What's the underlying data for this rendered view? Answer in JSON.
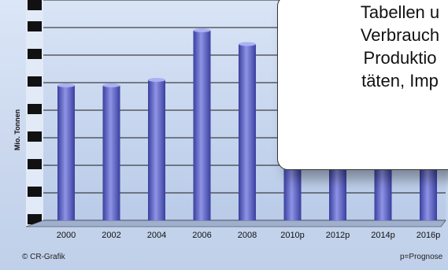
{
  "chart_data": {
    "type": "bar",
    "title": "",
    "xlabel": "",
    "ylabel": "Mio. Tonnen",
    "categories": [
      "2000",
      "2002",
      "2004",
      "2006",
      "2008",
      "2010p",
      "2012p",
      "2014p",
      "2016p"
    ],
    "values": [
      4.9,
      4.9,
      5.1,
      6.9,
      6.4,
      3.4,
      3.3,
      3.3,
      3.3
    ],
    "ylim": [
      0,
      8
    ],
    "y_tick_labels_visible": false,
    "grid": true,
    "bar_color": "#8f94e6",
    "bar_color_dark": "#3a3f9e"
  },
  "footnotes": {
    "source": "© CR-Grafik",
    "legend_note": "p=Prognose"
  },
  "overlay": {
    "lines": [
      "Tabellen u",
      "Verbrauch",
      "Produktio",
      "täten, Imp"
    ]
  }
}
